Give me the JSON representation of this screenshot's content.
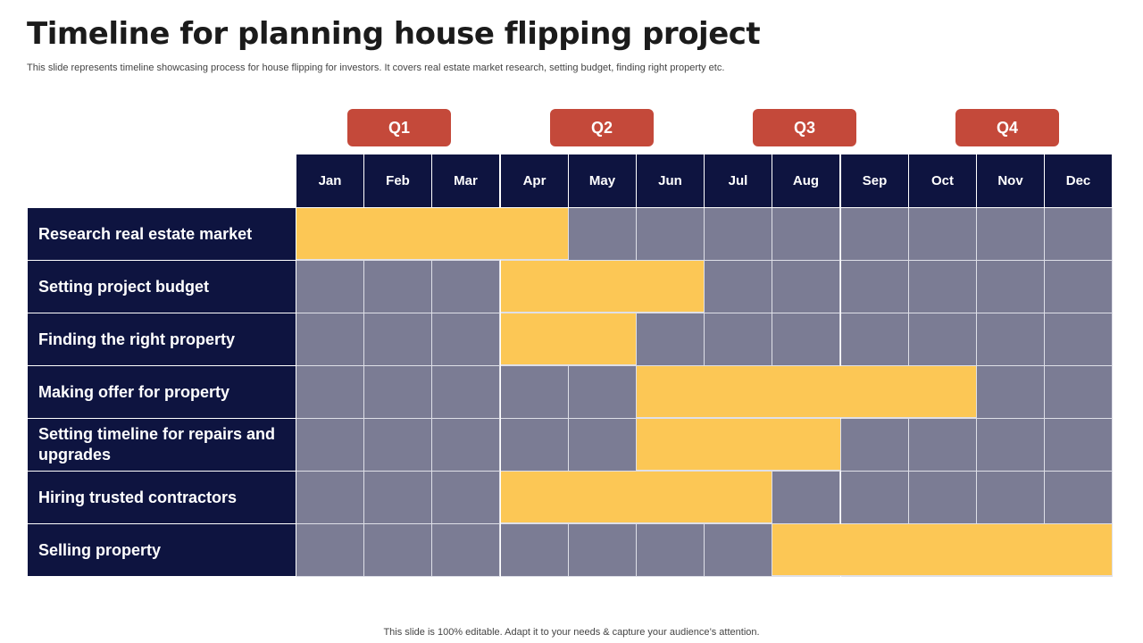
{
  "slide": {
    "title": "Timeline for planning house flipping project",
    "subtitle": "This slide represents timeline showcasing process for house flipping for investors. It covers real estate market research, setting budget, finding right property etc.",
    "footer": "This slide is 100% editable. Adapt it to your needs & capture your audience’s attention."
  },
  "colors": {
    "header_bg": "#0e1440",
    "quarter_bg": "#c4493a",
    "bar_fill": "#fcc755",
    "empty_cell": "#7b7c94"
  },
  "quarters": [
    "Q1",
    "Q2",
    "Q3",
    "Q4"
  ],
  "months": [
    "Jan",
    "Feb",
    "Mar",
    "Apr",
    "May",
    "Jun",
    "Jul",
    "Aug",
    "Sep",
    "Oct",
    "Nov",
    "Dec"
  ],
  "tasks": [
    {
      "label": "Research real estate market",
      "start_month": 1,
      "end_month": 4
    },
    {
      "label": "Setting project budget",
      "start_month": 4,
      "end_month": 6
    },
    {
      "label": "Finding the right property",
      "start_month": 4,
      "end_month": 5
    },
    {
      "label": "Making offer for property",
      "start_month": 6,
      "end_month": 10
    },
    {
      "label": "Setting timeline for repairs and upgrades",
      "start_month": 6,
      "end_month": 8
    },
    {
      "label": "Hiring trusted contractors",
      "start_month": 4,
      "end_month": 7
    },
    {
      "label": "Selling property",
      "start_month": 8,
      "end_month": 12
    }
  ]
}
